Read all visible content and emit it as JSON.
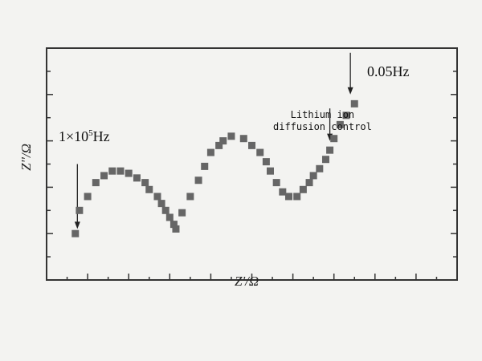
{
  "chart_data": {
    "type": "scatter",
    "title": "",
    "xlabel": "Z'/Ω",
    "ylabel": "Z''/Ω",
    "grid": false,
    "legend": "none",
    "marker": "square",
    "colors": {
      "marker": "#666666",
      "frame": "#333333",
      "background": "#f3f3f1"
    },
    "series": [
      {
        "points": [
          [
            0.07,
            0.2
          ],
          [
            0.08,
            0.3
          ],
          [
            0.1,
            0.36
          ],
          [
            0.12,
            0.42
          ],
          [
            0.14,
            0.45
          ],
          [
            0.16,
            0.47
          ],
          [
            0.18,
            0.47
          ],
          [
            0.2,
            0.46
          ],
          [
            0.22,
            0.44
          ],
          [
            0.24,
            0.42
          ],
          [
            0.25,
            0.39
          ],
          [
            0.27,
            0.36
          ],
          [
            0.28,
            0.33
          ],
          [
            0.29,
            0.3
          ],
          [
            0.3,
            0.27
          ],
          [
            0.31,
            0.24
          ],
          [
            0.315,
            0.22
          ],
          [
            0.33,
            0.29
          ],
          [
            0.35,
            0.36
          ],
          [
            0.37,
            0.43
          ],
          [
            0.385,
            0.49
          ],
          [
            0.4,
            0.55
          ],
          [
            0.42,
            0.58
          ],
          [
            0.43,
            0.6
          ],
          [
            0.45,
            0.62
          ],
          [
            0.48,
            0.61
          ],
          [
            0.5,
            0.58
          ],
          [
            0.52,
            0.55
          ],
          [
            0.535,
            0.51
          ],
          [
            0.545,
            0.47
          ],
          [
            0.56,
            0.42
          ],
          [
            0.575,
            0.38
          ],
          [
            0.59,
            0.36
          ],
          [
            0.61,
            0.36
          ],
          [
            0.625,
            0.39
          ],
          [
            0.64,
            0.42
          ],
          [
            0.65,
            0.45
          ],
          [
            0.665,
            0.48
          ],
          [
            0.68,
            0.52
          ],
          [
            0.69,
            0.56
          ],
          [
            0.7,
            0.61
          ],
          [
            0.715,
            0.67
          ],
          [
            0.73,
            0.71
          ],
          [
            0.75,
            0.76
          ]
        ]
      }
    ],
    "annotations": [
      {
        "id": "hf",
        "text": "1×10",
        "sup": "5",
        "unit": "Hz",
        "arrow_from": [
          0.075,
          0.5
        ],
        "arrow_to": [
          0.075,
          0.22
        ]
      },
      {
        "id": "mid",
        "lines": [
          "Lithium ion",
          "diffusion control"
        ],
        "arrow_from": [
          0.69,
          0.74
        ],
        "arrow_to": [
          0.69,
          0.6
        ]
      },
      {
        "id": "lf",
        "text": "0.05Hz",
        "arrow_from": [
          0.74,
          0.98
        ],
        "arrow_to": [
          0.74,
          0.8
        ]
      }
    ]
  }
}
